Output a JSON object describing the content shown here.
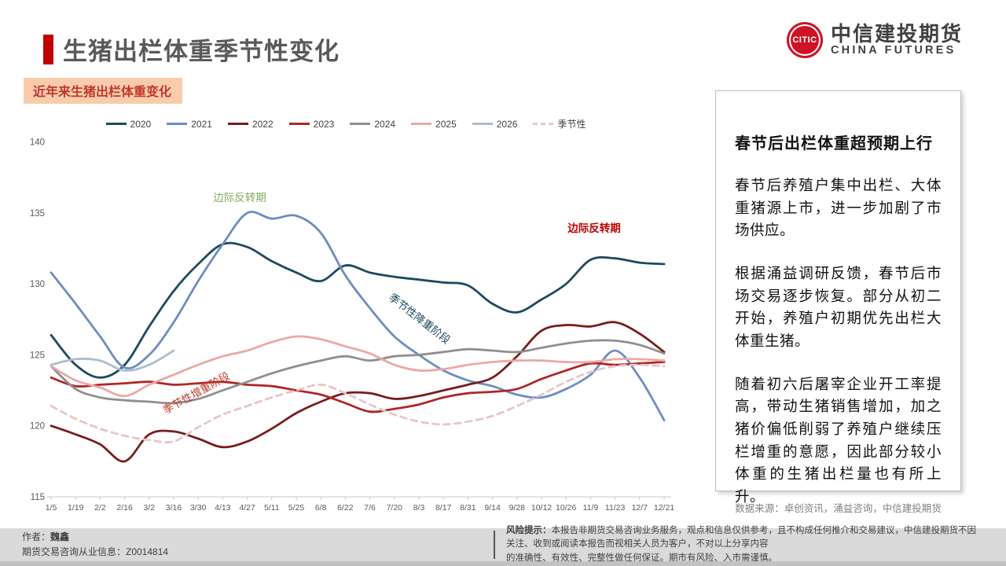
{
  "header": {
    "title": "生猪出栏体重季节性变化",
    "logo": {
      "mark": "CITIC",
      "zh": "中信建投期货",
      "en": "CHINA FUTURES"
    }
  },
  "chart_label": "近年来生猪出栏体重变化",
  "chart_data": {
    "type": "line",
    "title": "近年来生猪出栏体重变化",
    "ylim": [
      115,
      140
    ],
    "y_ticks": [
      140,
      135,
      130,
      125,
      120,
      115
    ],
    "grid": false,
    "legend_position": "top",
    "x_labels": [
      "1/5",
      "1/19",
      "2/2",
      "2/16",
      "3/2",
      "3/16",
      "3/30",
      "4/13",
      "4/27",
      "5/11",
      "5/25",
      "6/8",
      "6/22",
      "7/6",
      "7/20",
      "8/3",
      "8/17",
      "8/31",
      "9/14",
      "9/28",
      "10/12",
      "10/26",
      "11/9",
      "11/23",
      "12/7",
      "12/21"
    ],
    "series": [
      {
        "name": "2020",
        "color": "#1c4a5e",
        "dashed": false,
        "values": [
          126.4,
          124.3,
          123.4,
          124.3,
          127.0,
          129.5,
          131.4,
          132.8,
          132.6,
          131.6,
          130.8,
          130.2,
          131.3,
          130.8,
          130.5,
          130.3,
          130.1,
          129.9,
          128.6,
          128.0,
          128.9,
          130.0,
          131.7,
          131.8,
          131.5,
          131.4
        ]
      },
      {
        "name": "2021",
        "color": "#6d8dc0",
        "dashed": false,
        "values": [
          130.8,
          128.6,
          126.3,
          124.1,
          125.0,
          127.3,
          130.2,
          132.8,
          135.0,
          134.6,
          134.8,
          133.6,
          130.6,
          128.3,
          126.3,
          125.0,
          123.9,
          123.2,
          122.8,
          122.2,
          122.0,
          122.6,
          123.6,
          125.3,
          123.4,
          120.4
        ]
      },
      {
        "name": "2022",
        "color": "#781d1a",
        "dashed": false,
        "values": [
          120.0,
          119.4,
          118.7,
          117.5,
          119.4,
          119.6,
          119.1,
          118.5,
          118.9,
          119.8,
          120.9,
          121.7,
          122.3,
          122.3,
          121.9,
          122.1,
          122.5,
          122.9,
          123.4,
          124.9,
          126.7,
          127.1,
          127.0,
          127.3,
          126.5,
          125.2
        ]
      },
      {
        "name": "2023",
        "color": "#b02726",
        "dashed": false,
        "values": [
          123.4,
          122.8,
          122.9,
          123.0,
          123.1,
          122.9,
          123.0,
          123.1,
          122.9,
          122.8,
          122.5,
          122.2,
          121.6,
          121.0,
          121.2,
          121.5,
          122.0,
          122.3,
          122.4,
          122.6,
          123.3,
          123.9,
          124.4,
          124.3,
          124.4,
          124.5
        ]
      },
      {
        "name": "2024",
        "color": "#8f8f8f",
        "dashed": false,
        "values": [
          124.2,
          122.6,
          122.0,
          121.8,
          121.7,
          121.6,
          121.9,
          122.5,
          123.1,
          123.7,
          124.2,
          124.6,
          124.9,
          124.6,
          124.9,
          125.0,
          125.2,
          125.4,
          125.3,
          125.2,
          125.5,
          125.8,
          126.0,
          126.0,
          125.7,
          125.1
        ]
      },
      {
        "name": "2025",
        "color": "#eaa9a6",
        "dashed": false,
        "values": [
          124.2,
          123.2,
          122.7,
          122.1,
          122.9,
          123.6,
          124.3,
          124.9,
          125.3,
          125.9,
          126.3,
          126.1,
          125.6,
          125.1,
          124.3,
          123.9,
          124.0,
          124.3,
          124.5,
          124.6,
          124.6,
          124.5,
          124.5,
          124.7,
          124.7,
          124.6
        ]
      },
      {
        "name": "2026",
        "color": "#aebdcf",
        "dashed": false,
        "values": [
          124.3,
          124.7,
          124.6,
          123.9,
          124.3,
          125.3,
          null,
          null,
          null,
          null,
          null,
          null,
          null,
          null,
          null,
          null,
          null,
          null,
          null,
          null,
          null,
          null,
          null,
          null,
          null,
          null
        ]
      },
      {
        "name": "季节性",
        "color": "#e9c4ca",
        "dashed": true,
        "values": [
          121.4,
          120.5,
          119.8,
          119.3,
          119.0,
          118.9,
          119.9,
          120.8,
          121.4,
          122.0,
          122.5,
          122.9,
          122.3,
          121.5,
          120.8,
          120.3,
          120.1,
          120.3,
          120.7,
          121.4,
          122.2,
          123.1,
          123.8,
          124.2,
          124.3,
          124.2
        ]
      }
    ],
    "annotations": [
      {
        "text": "边际反转期",
        "color": "#7cae5e",
        "x": 305,
        "y": 256,
        "rotate": 0,
        "bold": false
      },
      {
        "text": "边际反转期",
        "color": "#c00000",
        "x": 756,
        "y": 295,
        "rotate": 0,
        "bold": true
      },
      {
        "text": "季节性降重阶段",
        "color": "#1c4a5e",
        "x": 531,
        "y": 409,
        "rotate": 38,
        "bold": false
      },
      {
        "text": "季节性增重阶段",
        "color": "#c0392b",
        "x": 252,
        "y": 504,
        "rotate": -29,
        "bold": false
      }
    ]
  },
  "panel": {
    "title": "春节后出栏体重超预期上行",
    "paragraphs": [
      "春节后养殖户集中出栏、大体重猪源上市，进一步加剧了市场供应。",
      "根据涌益调研反馈，春节后市场交易逐步恢复。部分从初二开始，养殖户初期优先出栏大体重生猪。",
      "随着初六后屠宰企业开工率提高，带动生猪销售增加，加之猪价偏低削弱了养殖户继续压栏增重的意愿，因此部分较小体重的生猪出栏量也有所上升。"
    ]
  },
  "source": "数据来源：卓创资讯，涌益咨询，中信建投期货",
  "footer": {
    "author_label": "作者：",
    "author": "魏鑫",
    "license": "期货交易咨询从业信息：Z0014814",
    "risk_label": "风险提示：",
    "risk_line1": "本报告非期货交易咨询业务服务，观点和信息仅供参考，且不构成任何推介和交易建议，中信建投期货不因关注、收到或阅读本报告而视相关人员为客户，不对以上分享内容",
    "risk_line2": "的准确性、有效性、完整性做任何保证。期市有风险、入市需谨慎。"
  }
}
